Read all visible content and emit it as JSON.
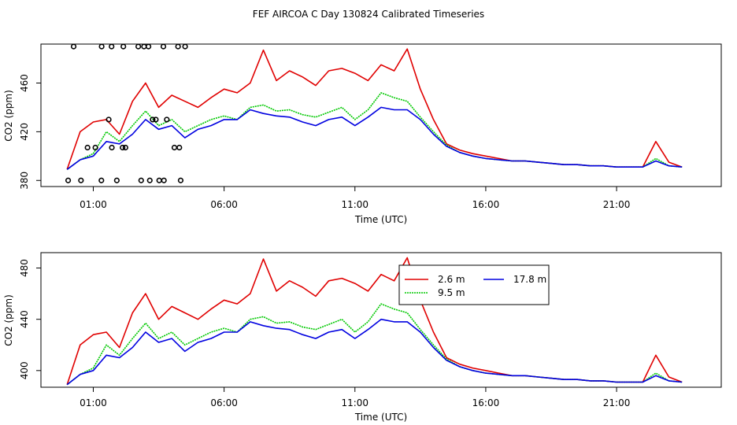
{
  "title": "FEF AIRCOA C  Day 130824  Calibrated Timeseries",
  "colors": {
    "s1": "#e00000",
    "s2": "#00c800",
    "s3": "#0000e0",
    "axis": "#000000"
  },
  "chart_data": [
    {
      "type": "scatter",
      "name": "marker-panel",
      "xlabel": "Time (UTC)",
      "ylabel": "CO2 (ppm)",
      "xlim": [
        -1.0,
        25.0
      ],
      "ylim": [
        375,
        492
      ],
      "xticks": [
        1,
        6,
        11,
        16,
        21
      ],
      "xtick_labels": [
        "01:00",
        "06:00",
        "11:00",
        "16:00",
        "21:00"
      ],
      "yticks": [
        380,
        420,
        460
      ],
      "ytick_labels": [
        "380",
        "420",
        "460"
      ],
      "series_key": "co2_series",
      "markers_x": [
        0.04,
        1.08,
        1.59,
        2.23,
        3.68,
        0.25,
        1.31,
        2.83,
        3.11,
        0.53,
        3.27,
        4.24,
        0.78,
        1.7,
        3.7,
        1.32,
        2.72,
        3.52,
        2.12,
        2.94,
        3.16,
        1.71,
        3.81,
        2.15,
        4.1,
        4.34,
        4.51,
        4.29,
        1.9,
        3.39
      ],
      "markers_y": [
        380,
        407,
        430,
        407,
        490,
        490,
        380,
        380,
        490,
        380,
        430,
        490,
        407,
        490,
        380,
        490,
        490,
        380,
        407,
        490,
        380,
        407,
        430,
        490,
        407,
        380,
        490,
        407,
        380,
        430
      ]
    },
    {
      "type": "line",
      "name": "line-panel",
      "xlabel": "Time (UTC)",
      "ylabel": "CO2 (ppm)",
      "xlim": [
        -1.0,
        25.0
      ],
      "ylim": [
        387,
        492
      ],
      "xticks": [
        1,
        6,
        11,
        16,
        21
      ],
      "xtick_labels": [
        "01:00",
        "06:00",
        "11:00",
        "16:00",
        "21:00"
      ],
      "yticks": [
        400,
        440,
        480
      ],
      "ytick_labels": [
        "400",
        "440",
        "480"
      ],
      "series_key": "co2_series",
      "legend": [
        "2.6 m",
        "9.5 m",
        "17.8 m"
      ]
    }
  ],
  "co2_series": {
    "x": [
      0.0,
      0.5,
      1.0,
      1.5,
      2.0,
      2.5,
      3.0,
      3.5,
      4.0,
      4.5,
      5.0,
      5.5,
      6.0,
      6.5,
      7.0,
      7.5,
      8.0,
      8.5,
      9.0,
      9.5,
      10.0,
      10.5,
      11.0,
      11.5,
      12.0,
      12.5,
      13.0,
      13.5,
      14.0,
      14.5,
      15.0,
      15.5,
      16.0,
      16.5,
      17.0,
      17.5,
      18.0,
      18.5,
      19.0,
      19.5,
      20.0,
      20.5,
      21.0,
      21.5,
      22.0,
      22.5,
      23.0,
      23.5
    ],
    "series": [
      {
        "name": "2.6 m",
        "values": [
          389,
          420,
          428,
          430,
          418,
          445,
          460,
          440,
          450,
          445,
          440,
          448,
          455,
          452,
          460,
          487,
          462,
          470,
          465,
          458,
          470,
          472,
          468,
          462,
          475,
          470,
          488,
          455,
          430,
          410,
          405,
          402,
          400,
          398,
          396,
          396,
          395,
          394,
          393,
          393,
          392,
          392,
          391,
          391,
          391,
          412,
          395,
          391
        ]
      },
      {
        "name": "9.5 m",
        "values": [
          389,
          397,
          402,
          420,
          412,
          425,
          437,
          425,
          430,
          420,
          425,
          430,
          433,
          430,
          440,
          442,
          437,
          438,
          434,
          432,
          436,
          440,
          430,
          438,
          452,
          448,
          445,
          432,
          420,
          409,
          403,
          400,
          398,
          397,
          396,
          396,
          395,
          394,
          393,
          393,
          392,
          392,
          391,
          391,
          391,
          398,
          392,
          391
        ]
      },
      {
        "name": "17.8 m",
        "values": [
          389,
          397,
          400,
          412,
          410,
          418,
          430,
          422,
          425,
          415,
          422,
          425,
          430,
          430,
          438,
          435,
          433,
          432,
          428,
          425,
          430,
          432,
          425,
          432,
          440,
          438,
          438,
          430,
          418,
          408,
          403,
          400,
          398,
          397,
          396,
          396,
          395,
          394,
          393,
          393,
          392,
          392,
          391,
          391,
          391,
          396,
          392,
          391
        ]
      }
    ]
  }
}
